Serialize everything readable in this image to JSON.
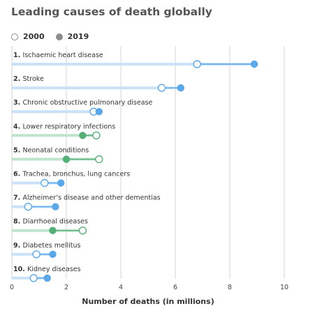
{
  "title": "Leading causes of death globally",
  "legend": {
    "item_2000": "2000",
    "item_2019": "2019"
  },
  "colors": {
    "blue_line": "#c9e2f8",
    "blue_dot": "#5aa7ea",
    "green_line": "#bfe3cd",
    "green_dot": "#55b078",
    "grid": "#d6d6d6"
  },
  "chart_data": {
    "type": "dumbbell",
    "title": "Leading causes of death globally",
    "xlabel": "Number of deaths (in millions)",
    "xlim": [
      0,
      10
    ],
    "xticks": [
      0,
      2,
      4,
      6,
      8,
      10
    ],
    "series_names": [
      "2000",
      "2019"
    ],
    "rows": [
      {
        "rank": "1.",
        "name": "Ischaemic heart disease",
        "v2000": 6.8,
        "v2019": 8.9,
        "color": "blue"
      },
      {
        "rank": "2.",
        "name": "Stroke",
        "v2000": 5.5,
        "v2019": 6.2,
        "color": "blue"
      },
      {
        "rank": "3.",
        "name": "Chronic obstructive pulmonary disease",
        "v2000": 3.0,
        "v2019": 3.2,
        "color": "blue"
      },
      {
        "rank": "4.",
        "name": "Lower respiratory infections",
        "v2000": 3.1,
        "v2019": 2.6,
        "color": "green"
      },
      {
        "rank": "5.",
        "name": "Neonatal conditions",
        "v2000": 3.2,
        "v2019": 2.0,
        "color": "green"
      },
      {
        "rank": "6.",
        "name": "Trachea, bronchus, lung cancers",
        "v2000": 1.2,
        "v2019": 1.8,
        "color": "blue"
      },
      {
        "rank": "7.",
        "name": "Alzheimer’s disease and other dementias",
        "v2000": 0.6,
        "v2019": 1.6,
        "color": "blue"
      },
      {
        "rank": "8.",
        "name": "Diarrhoeal diseases",
        "v2000": 2.6,
        "v2019": 1.5,
        "color": "green"
      },
      {
        "rank": "9.",
        "name": "Diabetes mellitus",
        "v2000": 0.9,
        "v2019": 1.5,
        "color": "blue"
      },
      {
        "rank": "10.",
        "name": "Kidney diseases",
        "v2000": 0.8,
        "v2019": 1.3,
        "color": "blue"
      }
    ]
  }
}
